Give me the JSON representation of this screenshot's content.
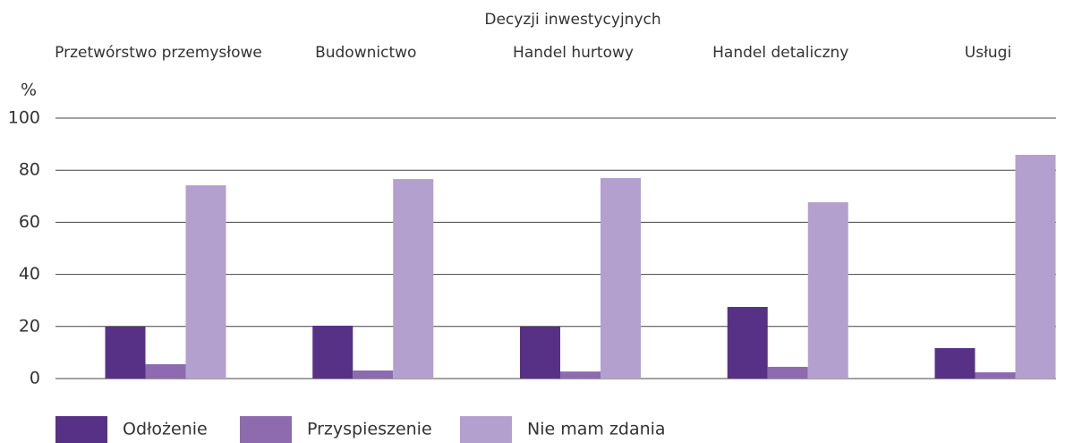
{
  "chart_data": {
    "type": "bar",
    "title": "Decyzji inwestycyjnych",
    "y_label": "%",
    "categories": [
      "Przetwórstwo przemysłowe",
      "Budownictwo",
      "Handel hurtowy",
      "Handel detaliczny",
      "Usługi"
    ],
    "series": [
      {
        "name": "Odłożenie",
        "color": "#573186",
        "values": [
          20,
          20.3,
          20,
          27.5,
          11.7
        ]
      },
      {
        "name": "Przyspieszenie",
        "color": "#8d6bae",
        "values": [
          5.5,
          3.1,
          2.7,
          4.5,
          2.4
        ]
      },
      {
        "name": "Nie mam zdania",
        "color": "#b3a0cf",
        "values": [
          74.2,
          76.6,
          77,
          67.7,
          85.9
        ]
      }
    ],
    "ylim": [
      0,
      100
    ],
    "yticks": [
      0,
      20,
      40,
      60,
      80,
      100
    ],
    "grid": true,
    "legend": "bottom"
  }
}
